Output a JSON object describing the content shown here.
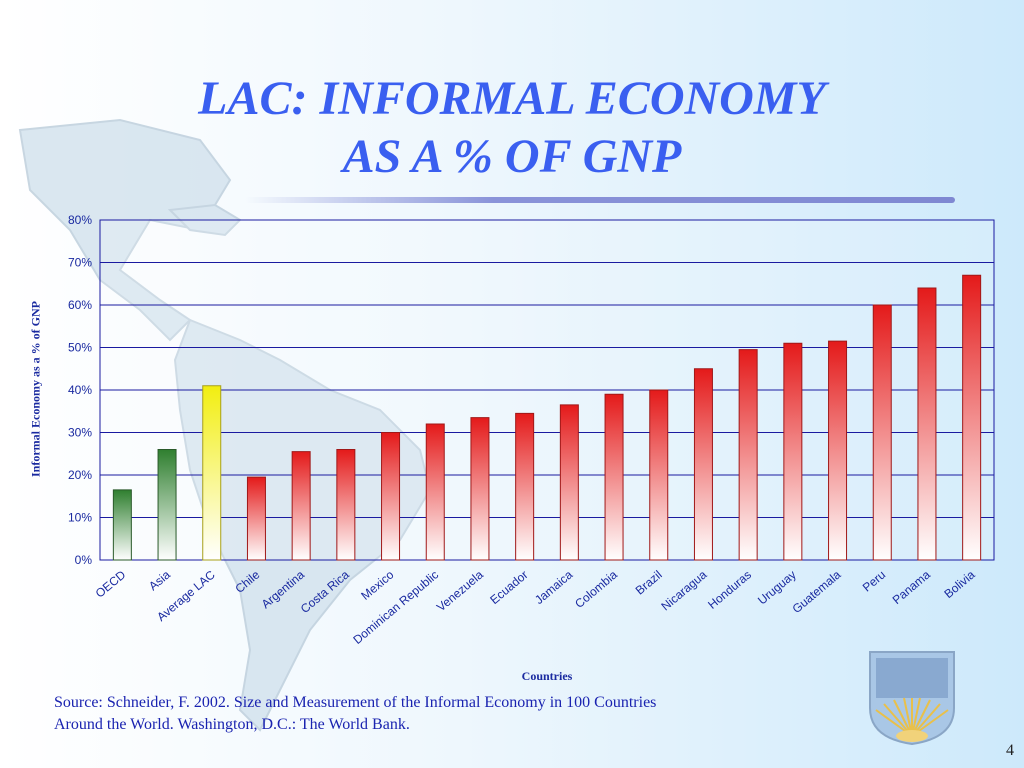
{
  "slide": {
    "title_line1": "LAC: INFORMAL ECONOMY",
    "title_line2": "AS A % OF GNP",
    "source_line1": "Source: Schneider, F. 2002. Size and Measurement of the Informal Economy in 100 Countries",
    "source_line2": "Around  the World. Washington, D.C.: The World Bank.",
    "page_number": "4"
  },
  "colors": {
    "title": "#3a5ff0",
    "axis_text": "#1a2aa0",
    "gridline": "#1a1aa0",
    "bar_green": "#3a8a3a",
    "bar_yellow": "#f4f020",
    "bar_red": "#e82020"
  },
  "chart_data": {
    "type": "bar",
    "ylabel": "Informal Economy as a % of GNP",
    "xlabel": "Countries",
    "ylim": [
      0,
      80
    ],
    "yticks": [
      "0%",
      "10%",
      "20%",
      "30%",
      "40%",
      "50%",
      "60%",
      "70%",
      "80%"
    ],
    "grid": true,
    "categories": [
      "OECD",
      "Asia",
      "Average LAC",
      "Chile",
      "Argentina",
      "Costa Rica",
      "Mexico",
      "Dominican Republic",
      "Venezuela",
      "Ecuador",
      "Jamaica",
      "Colombia",
      "Brazil",
      "Nicaragua",
      "Honduras",
      "Uruguay",
      "Guatemala",
      "Peru",
      "Panama",
      "Bolivia"
    ],
    "values": [
      16.5,
      26,
      41,
      19.5,
      25.5,
      26,
      30,
      32,
      33.5,
      34.5,
      36.5,
      39,
      40,
      45,
      49.5,
      51,
      51.5,
      60,
      64,
      67
    ],
    "bar_colors": [
      "green",
      "green",
      "yellow",
      "red",
      "red",
      "red",
      "red",
      "red",
      "red",
      "red",
      "red",
      "red",
      "red",
      "red",
      "red",
      "red",
      "red",
      "red",
      "red",
      "red"
    ]
  }
}
